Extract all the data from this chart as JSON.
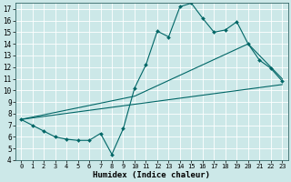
{
  "xlabel": "Humidex (Indice chaleur)",
  "bg_color": "#cce8e8",
  "grid_color": "#ffffff",
  "line_color": "#006666",
  "xlim": [
    -0.5,
    23.5
  ],
  "ylim": [
    4,
    17.5
  ],
  "xticks": [
    0,
    1,
    2,
    3,
    4,
    5,
    6,
    7,
    8,
    9,
    10,
    11,
    12,
    13,
    14,
    15,
    16,
    17,
    18,
    19,
    20,
    21,
    22,
    23
  ],
  "yticks": [
    4,
    5,
    6,
    7,
    8,
    9,
    10,
    11,
    12,
    13,
    14,
    15,
    16,
    17
  ],
  "line1_x": [
    0,
    1,
    2,
    3,
    4,
    5,
    6,
    7,
    8,
    9,
    10,
    11,
    12,
    13,
    14,
    15,
    16,
    17,
    18,
    19,
    20,
    21,
    22,
    23
  ],
  "line1_y": [
    7.5,
    7.0,
    6.5,
    6.0,
    5.8,
    5.7,
    5.7,
    6.3,
    4.5,
    6.7,
    10.2,
    12.2,
    15.1,
    14.6,
    17.2,
    17.5,
    16.2,
    15.0,
    15.2,
    15.9,
    14.0,
    12.6,
    11.9,
    10.8
  ],
  "line2_x": [
    0,
    10,
    20,
    23
  ],
  "line2_y": [
    7.5,
    9.5,
    14.0,
    11.0
  ],
  "line3_x": [
    0,
    23
  ],
  "line3_y": [
    7.5,
    10.5
  ]
}
